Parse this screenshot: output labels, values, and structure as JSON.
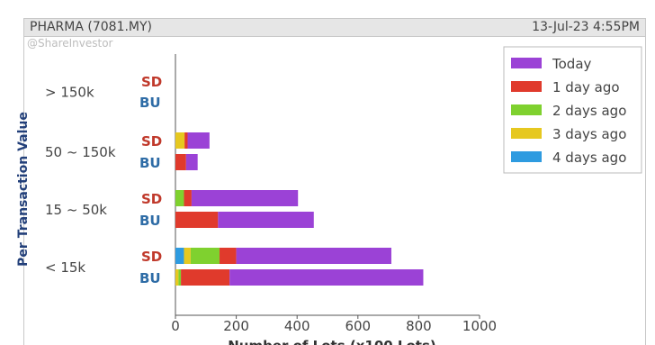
{
  "header": {
    "title": "PHARMA (7081.MY)",
    "timestamp": "13-Jul-23 4:55PM"
  },
  "watermark": "@ShareInvestor",
  "colors": {
    "today": "#9b42d6",
    "day1": "#e03a2c",
    "day2": "#7fd12f",
    "day3": "#e6c820",
    "day4": "#2e9be0",
    "sd_label": "#c0392b",
    "bu_label": "#2e6ca6"
  },
  "chart_data": {
    "type": "bar",
    "orientation": "horizontal",
    "stacked": true,
    "ylabel": "Per Transaction Value",
    "xlabel": "Number of Lots (x100 Lots)",
    "xlim": [
      0,
      1000
    ],
    "xticks": [
      0,
      200,
      400,
      600,
      800,
      1000
    ],
    "grid": false,
    "legend_position": "top-right",
    "series": [
      {
        "name": "Today",
        "key": "today"
      },
      {
        "name": "1 day ago",
        "key": "day1"
      },
      {
        "name": "2 days ago",
        "key": "day2"
      },
      {
        "name": "3 days ago",
        "key": "day3"
      },
      {
        "name": "4 days ago",
        "key": "day4"
      }
    ],
    "groups": [
      {
        "label": "> 150k",
        "SD": {
          "day4": 0,
          "day3": 0,
          "day2": 0,
          "day1": 0,
          "today": 0
        },
        "BU": {
          "day4": 0,
          "day3": 0,
          "day2": 0,
          "day1": 0,
          "today": 0
        }
      },
      {
        "label": "50 ~ 150k",
        "SD": {
          "day4": 0,
          "day3": 30,
          "day2": 0,
          "day1": 10,
          "today": 72
        },
        "BU": {
          "day4": 0,
          "day3": 0,
          "day2": 0,
          "day1": 35,
          "today": 38
        }
      },
      {
        "label": "15 ~ 50k",
        "SD": {
          "day4": 0,
          "day3": 0,
          "day2": 28,
          "day1": 25,
          "today": 350
        },
        "BU": {
          "day4": 0,
          "day3": 0,
          "day2": 0,
          "day1": 140,
          "today": 315
        }
      },
      {
        "label": "< 15k",
        "SD": {
          "day4": 28,
          "day3": 22,
          "day2": 95,
          "day1": 55,
          "today": 510
        },
        "BU": {
          "day4": 0,
          "day3": 10,
          "day2": 8,
          "day1": 160,
          "today": 637
        }
      }
    ],
    "bar_labels": {
      "sd": "SD",
      "bu": "BU"
    }
  }
}
